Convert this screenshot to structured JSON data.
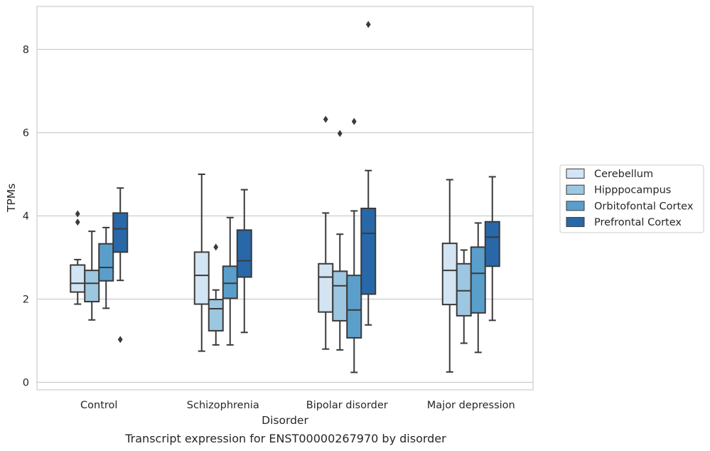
{
  "chart_data": {
    "type": "box",
    "title": "",
    "caption": "Transcript expression for ENST00000267970 by disorder",
    "xlabel": "Disorder",
    "ylabel": "TPMs",
    "ylim": [
      -0.18,
      9.0
    ],
    "yticks": [
      0,
      2,
      4,
      6,
      8
    ],
    "grid": "horizontal",
    "legend_position": "right",
    "categories": [
      "Control",
      "Schizophrenia",
      "Bipolar disorder",
      "Major depression"
    ],
    "series": [
      {
        "name": "Cerebellum",
        "color": "#d3e4f3",
        "boxes": [
          {
            "category": "Control",
            "whisker_low": 1.88,
            "q1": 2.17,
            "median": 2.38,
            "q3": 2.82,
            "whisker_high": 2.95,
            "outliers": [
              4.05,
              3.85
            ]
          },
          {
            "category": "Schizophrenia",
            "whisker_low": 0.75,
            "q1": 1.88,
            "median": 2.57,
            "q3": 3.13,
            "whisker_high": 5.0,
            "outliers": []
          },
          {
            "category": "Bipolar disorder",
            "whisker_low": 0.8,
            "q1": 1.69,
            "median": 2.53,
            "q3": 2.85,
            "whisker_high": 4.07,
            "outliers": [
              6.32
            ]
          },
          {
            "category": "Major depression",
            "whisker_low": 0.25,
            "q1": 1.87,
            "median": 2.69,
            "q3": 3.34,
            "whisker_high": 4.87,
            "outliers": []
          }
        ]
      },
      {
        "name": "Hipppocampus",
        "color": "#9dc6e0",
        "boxes": [
          {
            "category": "Control",
            "whisker_low": 1.5,
            "q1": 1.94,
            "median": 2.38,
            "q3": 2.69,
            "whisker_high": 3.63,
            "outliers": []
          },
          {
            "category": "Schizophrenia",
            "whisker_low": 0.9,
            "q1": 1.24,
            "median": 1.77,
            "q3": 1.99,
            "whisker_high": 2.22,
            "outliers": [
              3.25
            ]
          },
          {
            "category": "Bipolar disorder",
            "whisker_low": 0.78,
            "q1": 1.48,
            "median": 2.32,
            "q3": 2.67,
            "whisker_high": 3.56,
            "outliers": [
              5.98
            ]
          },
          {
            "category": "Major depression",
            "whisker_low": 0.94,
            "q1": 1.6,
            "median": 2.2,
            "q3": 2.85,
            "whisker_high": 3.18,
            "outliers": []
          }
        ]
      },
      {
        "name": "Orbitofontal Cortex",
        "color": "#5a9fcb",
        "boxes": [
          {
            "category": "Control",
            "whisker_low": 1.78,
            "q1": 2.44,
            "median": 2.76,
            "q3": 3.33,
            "whisker_high": 3.72,
            "outliers": []
          },
          {
            "category": "Schizophrenia",
            "whisker_low": 0.9,
            "q1": 2.02,
            "median": 2.38,
            "q3": 2.79,
            "whisker_high": 3.96,
            "outliers": []
          },
          {
            "category": "Bipolar disorder",
            "whisker_low": 0.24,
            "q1": 1.07,
            "median": 1.74,
            "q3": 2.57,
            "whisker_high": 4.12,
            "outliers": [
              6.27
            ]
          },
          {
            "category": "Major depression",
            "whisker_low": 0.72,
            "q1": 1.67,
            "median": 2.62,
            "q3": 3.25,
            "whisker_high": 3.83,
            "outliers": []
          }
        ]
      },
      {
        "name": "Prefrontal Cortex",
        "color": "#2868a8",
        "boxes": [
          {
            "category": "Control",
            "whisker_low": 2.45,
            "q1": 3.13,
            "median": 3.69,
            "q3": 4.07,
            "whisker_high": 4.67,
            "outliers": [
              1.03
            ]
          },
          {
            "category": "Schizophrenia",
            "whisker_low": 1.2,
            "q1": 2.53,
            "median": 2.92,
            "q3": 3.66,
            "whisker_high": 4.63,
            "outliers": []
          },
          {
            "category": "Bipolar disorder",
            "whisker_low": 1.38,
            "q1": 2.12,
            "median": 3.58,
            "q3": 4.18,
            "whisker_high": 5.09,
            "outliers": [
              8.6
            ]
          },
          {
            "category": "Major depression",
            "whisker_low": 1.49,
            "q1": 2.79,
            "median": 3.49,
            "q3": 3.86,
            "whisker_high": 4.94,
            "outliers": []
          }
        ]
      }
    ]
  }
}
